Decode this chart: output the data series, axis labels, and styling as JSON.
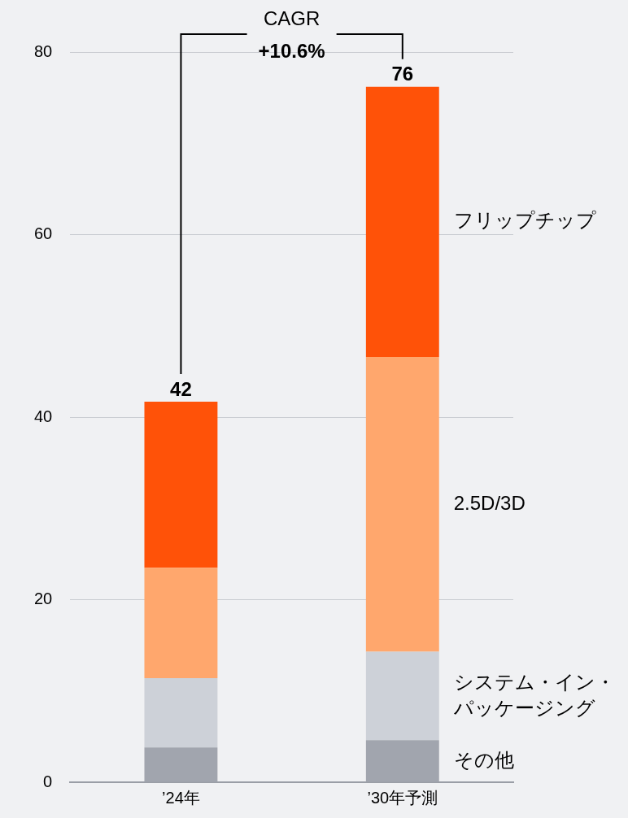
{
  "chart_data": {
    "type": "bar",
    "stacked": true,
    "categories": [
      "’24年",
      "’30年予測"
    ],
    "series": [
      {
        "name": "その他",
        "color": "#a1a5ae",
        "values": [
          3.8,
          4.6
        ]
      },
      {
        "name": "システム・イン・パッケージング",
        "color": "#cdd1d8",
        "values": [
          7.6,
          9.7
        ]
      },
      {
        "name": "2.5D/3D",
        "color": "#ffa76d",
        "values": [
          12.1,
          32.3
        ]
      },
      {
        "name": "フリップチップ",
        "color": "#ff5208",
        "values": [
          18.2,
          29.6
        ]
      }
    ],
    "totals": [
      "42",
      "76"
    ],
    "annotations": [
      "CAGR",
      "+10.6%"
    ],
    "ylim": [
      0,
      80
    ],
    "yticks": [
      0,
      20,
      40,
      60,
      80
    ],
    "grid": "y",
    "legend": false
  }
}
